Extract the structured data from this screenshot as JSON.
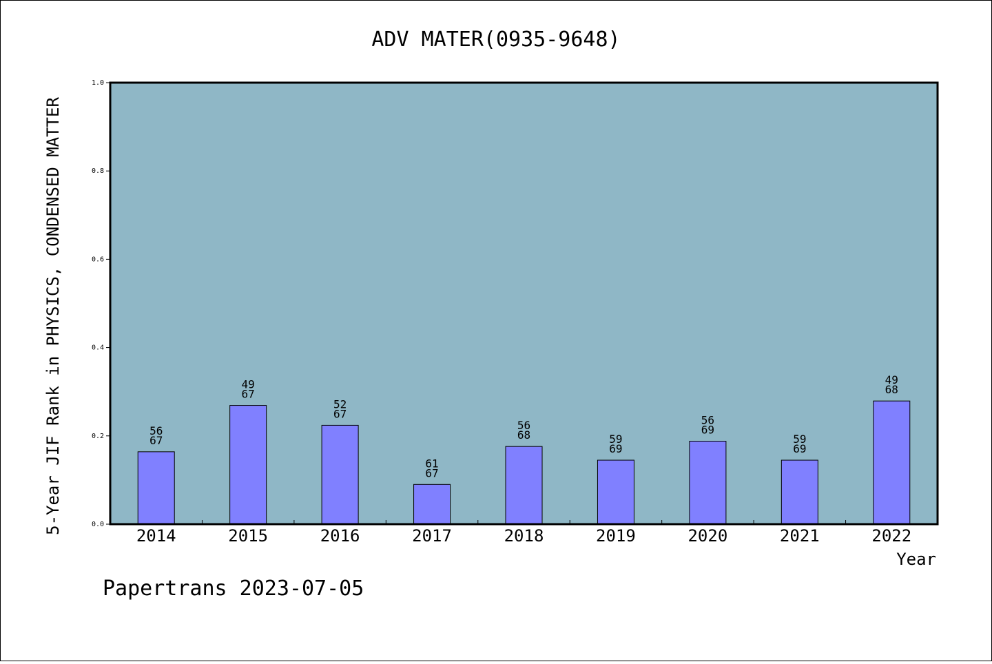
{
  "chart_data": {
    "type": "bar",
    "title": "ADV MATER(0935-9648)",
    "ylabel": "5-Year JIF Rank in PHYSICS, CONDENSED MATTER",
    "xlabel": "Year",
    "ylim": [
      0,
      1.0
    ],
    "yticks": [
      "0.0",
      "0.2",
      "0.4",
      "0.6",
      "0.8",
      "1.0"
    ],
    "grid": false,
    "categories": [
      "2014",
      "2015",
      "2016",
      "2017",
      "2018",
      "2019",
      "2020",
      "2021",
      "2022"
    ],
    "values": [
      0.164,
      0.269,
      0.224,
      0.09,
      0.176,
      0.145,
      0.188,
      0.145,
      0.279
    ],
    "ranks": [
      "56",
      "49",
      "52",
      "61",
      "56",
      "59",
      "56",
      "59",
      "49"
    ],
    "totals": [
      "67",
      "67",
      "67",
      "67",
      "68",
      "69",
      "69",
      "69",
      "68"
    ],
    "colors": {
      "plot_background": "#8fb7c6",
      "bar": "#8080ff",
      "bar_edge": "#000000",
      "axis": "#000000"
    }
  },
  "footer": "Papertrans 2023-07-05"
}
